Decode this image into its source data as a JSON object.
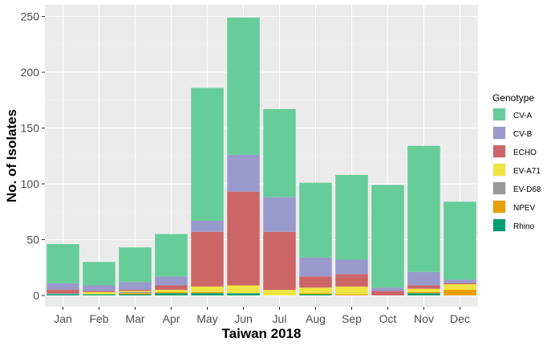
{
  "chart_data": {
    "type": "bar",
    "stacked": true,
    "xlabel": "Taiwan 2018",
    "ylabel": "No. of Isolates",
    "ylim": [
      0,
      260
    ],
    "yticks": [
      0,
      50,
      100,
      150,
      200,
      250
    ],
    "grid": true,
    "legend": {
      "title": "Genotype",
      "position": "right"
    },
    "categories": [
      "Jan",
      "Feb",
      "Mar",
      "Apr",
      "May",
      "Jun",
      "Jul",
      "Aug",
      "Sep",
      "Oct",
      "Nov",
      "Dec"
    ],
    "series": [
      {
        "name": "Rhino",
        "color": "#009E73",
        "values": [
          1,
          1,
          1,
          2,
          2,
          2,
          0,
          1,
          0,
          0,
          2,
          0
        ]
      },
      {
        "name": "NPEV",
        "color": "#E69F00",
        "values": [
          0,
          0,
          1,
          1,
          1,
          0,
          0,
          1,
          1,
          0,
          1,
          5
        ]
      },
      {
        "name": "EV-D68",
        "color": "#999999",
        "values": [
          1,
          0,
          1,
          0,
          0,
          0,
          0,
          0,
          0,
          0,
          0,
          0
        ]
      },
      {
        "name": "EV-A71",
        "color": "#F0E442",
        "values": [
          0,
          2,
          1,
          2,
          5,
          7,
          5,
          5,
          7,
          0,
          3,
          5
        ]
      },
      {
        "name": "ECHO",
        "color": "#CC6666",
        "values": [
          3,
          1,
          1,
          4,
          49,
          84,
          52,
          10,
          11,
          4,
          3,
          1
        ]
      },
      {
        "name": "CV-B",
        "color": "#9999CC",
        "values": [
          6,
          5,
          7,
          8,
          10,
          33,
          31,
          17,
          13,
          3,
          12,
          3
        ]
      },
      {
        "name": "CV-A",
        "color": "#66CC99",
        "values": [
          35,
          21,
          31,
          38,
          119,
          123,
          79,
          67,
          76,
          92,
          113,
          70
        ]
      }
    ],
    "legend_order": [
      "CV-A",
      "CV-B",
      "ECHO",
      "EV-A71",
      "EV-D68",
      "NPEV",
      "Rhino"
    ]
  }
}
